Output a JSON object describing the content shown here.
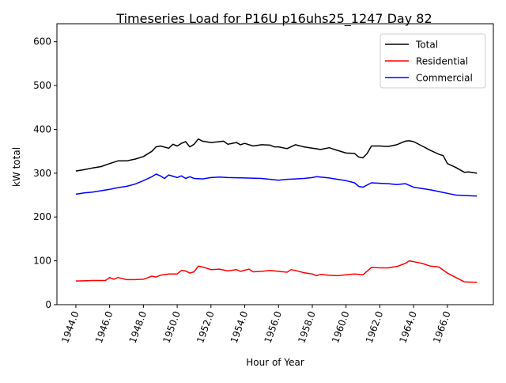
{
  "chart_data": {
    "type": "line",
    "title": "Timeseries Load for P16U p16uhs25_1247  Day 82",
    "xlabel": "Hour of Year",
    "ylabel": "kW total",
    "xlim": [
      1942.88,
      1968.72
    ],
    "ylim": [
      0,
      641
    ],
    "grid": false,
    "legend_position": "top-right",
    "xticks": [
      1944,
      1946,
      1948,
      1950,
      1952,
      1954,
      1956,
      1958,
      1960,
      1962,
      1964,
      1966
    ],
    "xtick_labels": [
      "1944.0",
      "1946.0",
      "1948.0",
      "1950.0",
      "1952.0",
      "1954.0",
      "1956.0",
      "1958.0",
      "1960.0",
      "1962.0",
      "1964.0",
      "1966.0"
    ],
    "yticks": [
      0,
      100,
      200,
      300,
      400,
      500,
      600
    ],
    "ytick_labels": [
      "0",
      "100",
      "200",
      "300",
      "400",
      "500",
      "600"
    ],
    "series": [
      {
        "name": "Total",
        "color": "#000000",
        "x": [
          1944,
          1944.5,
          1945,
          1945.5,
          1946,
          1946.5,
          1947,
          1947.5,
          1948,
          1948.5,
          1948.75,
          1949,
          1949.5,
          1949.75,
          1950,
          1950.25,
          1950.5,
          1950.75,
          1951,
          1951.25,
          1951.5,
          1952,
          1952.5,
          1952.75,
          1953,
          1953.5,
          1953.75,
          1954,
          1954.5,
          1955,
          1955.5,
          1955.75,
          1956,
          1956.5,
          1957,
          1957.5,
          1958,
          1958.5,
          1959,
          1959.5,
          1960,
          1960.5,
          1960.75,
          1961,
          1961.25,
          1961.5,
          1962,
          1962.5,
          1963,
          1963.5,
          1963.75,
          1964,
          1964.5,
          1965,
          1965.5,
          1965.75,
          1966,
          1966.5,
          1967,
          1967.25,
          1967.75
        ],
        "y": [
          305,
          308,
          312,
          315,
          322,
          328,
          328,
          332,
          338,
          350,
          360,
          362,
          357,
          366,
          362,
          368,
          372,
          360,
          366,
          378,
          373,
          370,
          372,
          373,
          366,
          370,
          365,
          368,
          362,
          365,
          364,
          360,
          360,
          356,
          365,
          360,
          357,
          354,
          358,
          352,
          346,
          345,
          337,
          335,
          345,
          362,
          362,
          361,
          365,
          373,
          374,
          372,
          362,
          352,
          343,
          340,
          322,
          313,
          302,
          303,
          300
        ]
      },
      {
        "name": "Residential",
        "color": "#ff0000",
        "x": [
          1944,
          1945,
          1945.75,
          1946,
          1946.25,
          1946.5,
          1947,
          1947.5,
          1948,
          1948.5,
          1948.75,
          1949,
          1949.5,
          1950,
          1950.25,
          1950.5,
          1950.75,
          1951,
          1951.25,
          1951.5,
          1952,
          1952.5,
          1953,
          1953.5,
          1953.75,
          1954.25,
          1954.5,
          1955,
          1955.5,
          1956,
          1956.5,
          1956.75,
          1957,
          1957.5,
          1958,
          1958.25,
          1958.5,
          1959,
          1959.5,
          1960,
          1960.5,
          1961,
          1961.5,
          1962,
          1962.5,
          1963,
          1963.5,
          1963.75,
          1964,
          1964.5,
          1965,
          1965.5,
          1966,
          1966.5,
          1967,
          1967.75
        ],
        "y": [
          54,
          55,
          55,
          62,
          58,
          62,
          57,
          57,
          58,
          65,
          63,
          67,
          70,
          70,
          78,
          77,
          72,
          75,
          88,
          86,
          80,
          81,
          77,
          80,
          76,
          81,
          75,
          76,
          78,
          76,
          74,
          80,
          78,
          73,
          70,
          66,
          69,
          67,
          66,
          68,
          70,
          68,
          85,
          84,
          84,
          87,
          94,
          100,
          98,
          94,
          88,
          86,
          72,
          62,
          52,
          51
        ]
      },
      {
        "name": "Commercial",
        "color": "#0000ff",
        "x": [
          1944,
          1944.5,
          1945,
          1945.5,
          1946,
          1946.5,
          1947,
          1947.5,
          1948,
          1948.5,
          1948.75,
          1949,
          1949.25,
          1949.5,
          1950,
          1950.25,
          1950.5,
          1950.75,
          1951,
          1951.5,
          1952,
          1952.5,
          1953,
          1954,
          1955,
          1955.5,
          1956,
          1956.5,
          1957,
          1957.5,
          1958,
          1958.25,
          1959,
          1959.5,
          1960,
          1960.5,
          1960.75,
          1961,
          1961.5,
          1962,
          1962.5,
          1963,
          1963.5,
          1964,
          1964.5,
          1965,
          1965.5,
          1966,
          1966.5,
          1967,
          1967.75
        ],
        "y": [
          252,
          255,
          257,
          260,
          263,
          267,
          270,
          275,
          283,
          292,
          298,
          294,
          288,
          296,
          290,
          294,
          288,
          292,
          288,
          287,
          290,
          291,
          290,
          289,
          288,
          286,
          284,
          286,
          287,
          288,
          290,
          292,
          289,
          286,
          283,
          278,
          270,
          268,
          278,
          277,
          276,
          274,
          276,
          268,
          265,
          262,
          258,
          254,
          250,
          249,
          248
        ]
      }
    ]
  }
}
